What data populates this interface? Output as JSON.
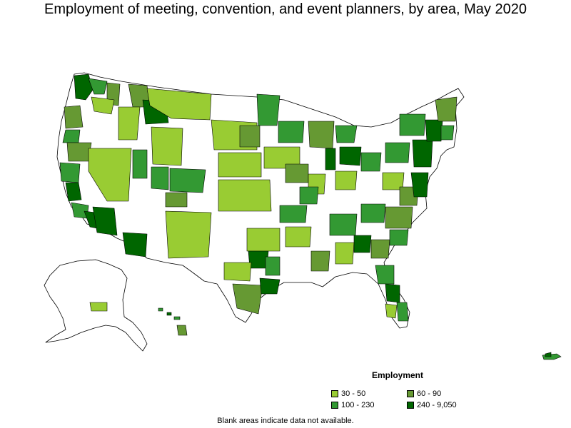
{
  "title": "Employment of meeting, convention, and event planners, by area, May 2020",
  "legend": {
    "title": "Employment",
    "items": [
      {
        "label": "30 - 50",
        "color": "#99cc33"
      },
      {
        "label": "60 - 90",
        "color": "#669933"
      },
      {
        "label": "100 - 230",
        "color": "#339933"
      },
      {
        "label": "240 - 9,050",
        "color": "#006600"
      }
    ]
  },
  "footnote": "Blank areas indicate data not available.",
  "colors": {
    "blank": "#ffffff",
    "border": "#000000"
  }
}
